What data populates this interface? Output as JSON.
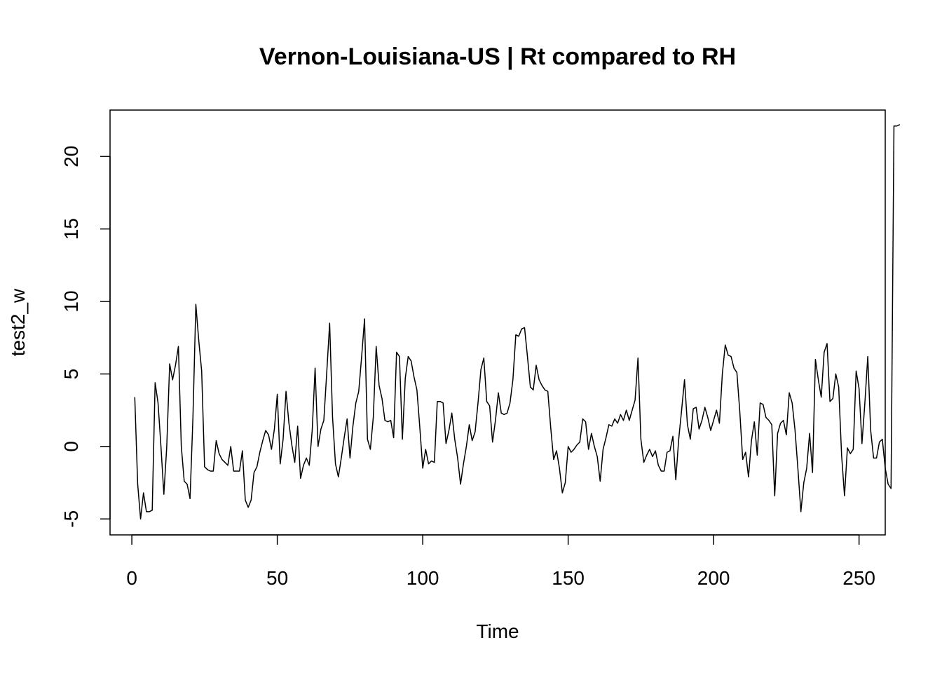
{
  "chart_data": {
    "type": "line",
    "title": "Vernon-Louisiana-US | Rt compared to RH",
    "xlabel": "Time",
    "ylabel": "test2_w",
    "xlim": [
      -7.5,
      259
    ],
    "ylim": [
      -6.1,
      23.2
    ],
    "x_ticks": [
      0,
      50,
      100,
      150,
      200,
      250
    ],
    "y_ticks": [
      -5,
      0,
      5,
      10,
      15,
      20
    ],
    "grid": false,
    "legend": "none",
    "series": [
      {
        "color": "#000000",
        "values": [
          3.4,
          -2.6,
          -5.0,
          -3.2,
          -4.5,
          -4.5,
          -4.4,
          4.4,
          3.0,
          0.0,
          -3.3,
          0.0,
          5.7,
          4.6,
          5.6,
          6.9,
          0.0,
          -2.4,
          -2.6,
          -3.6,
          2.0,
          9.8,
          7.3,
          5.2,
          -1.4,
          -1.6,
          -1.7,
          -1.7,
          0.4,
          -0.5,
          -0.9,
          -1.1,
          -1.3,
          0.0,
          -1.7,
          -1.7,
          -1.7,
          -0.3,
          -3.7,
          -4.2,
          -3.7,
          -1.8,
          -1.4,
          -0.4,
          0.4,
          1.1,
          0.8,
          -0.2,
          1.2,
          3.6,
          -1.2,
          0.5,
          3.8,
          1.6,
          0.1,
          -1.1,
          1.4,
          -2.2,
          -1.3,
          -0.8,
          -1.3,
          1.1,
          5.4,
          0.0,
          1.2,
          1.8,
          5.1,
          8.5,
          2.0,
          -1.2,
          -2.1,
          -0.8,
          0.6,
          1.9,
          -0.8,
          1.4,
          3.0,
          3.8,
          6.2,
          8.8,
          0.5,
          -0.2,
          2.0,
          6.9,
          4.2,
          3.3,
          1.8,
          1.7,
          1.8,
          0.6,
          6.5,
          6.2,
          0.5,
          4.7,
          6.2,
          5.9,
          4.8,
          3.9,
          1.3,
          -1.5,
          -0.2,
          -1.2,
          -1.0,
          -1.1,
          3.1,
          3.1,
          3.0,
          0.2,
          1.1,
          2.3,
          0.5,
          -0.8,
          -2.6,
          -1.2,
          0.0,
          1.5,
          0.4,
          1.0,
          3.0,
          5.3,
          6.1,
          3.1,
          2.8,
          0.3,
          1.8,
          3.7,
          2.3,
          2.2,
          2.3,
          3.0,
          4.6,
          7.7,
          7.6,
          8.1,
          8.2,
          6.2,
          4.1,
          3.9,
          5.6,
          4.6,
          4.2,
          3.9,
          3.8,
          1.3,
          -0.9,
          -0.3,
          -1.5,
          -3.2,
          -2.5,
          0.0,
          -0.4,
          -0.2,
          0.1,
          0.3,
          1.9,
          1.7,
          -0.2,
          0.9,
          0.0,
          -0.7,
          -2.4,
          -0.2,
          0.6,
          1.5,
          1.4,
          1.9,
          1.6,
          2.2,
          1.8,
          2.5,
          1.8,
          2.5,
          3.2,
          6.1,
          0.5,
          -1.1,
          -0.6,
          -0.2,
          -0.7,
          -0.3,
          -1.3,
          -1.7,
          -1.7,
          -0.4,
          -0.3,
          0.7,
          -2.3,
          0.5,
          2.5,
          4.6,
          1.5,
          0.5,
          2.6,
          2.7,
          1.2,
          1.8,
          2.7,
          2.0,
          1.1,
          1.8,
          2.5,
          1.6,
          5.0,
          7.0,
          6.3,
          6.2,
          5.4,
          5.1,
          2.4,
          -0.9,
          -0.4,
          -2.1,
          0.4,
          1.7,
          -0.6,
          3.0,
          2.9,
          2.0,
          1.8,
          1.5,
          -3.4,
          0.9,
          1.6,
          1.8,
          0.8,
          3.7,
          3.0,
          1.1,
          -1.6,
          -4.5,
          -2.5,
          -1.5,
          0.9,
          -1.8,
          6.0,
          4.6,
          3.4,
          6.5,
          7.1,
          3.1,
          3.3,
          5.0,
          4.1,
          -0.6,
          -3.4,
          -0.1,
          -0.5,
          -0.2,
          5.2,
          4.0,
          0.2,
          3.0,
          6.2,
          1.1,
          -0.8,
          -0.8,
          0.3,
          0.5,
          -1.5,
          -2.6,
          -2.9,
          22.1,
          22.1,
          22.2
        ]
      }
    ]
  }
}
